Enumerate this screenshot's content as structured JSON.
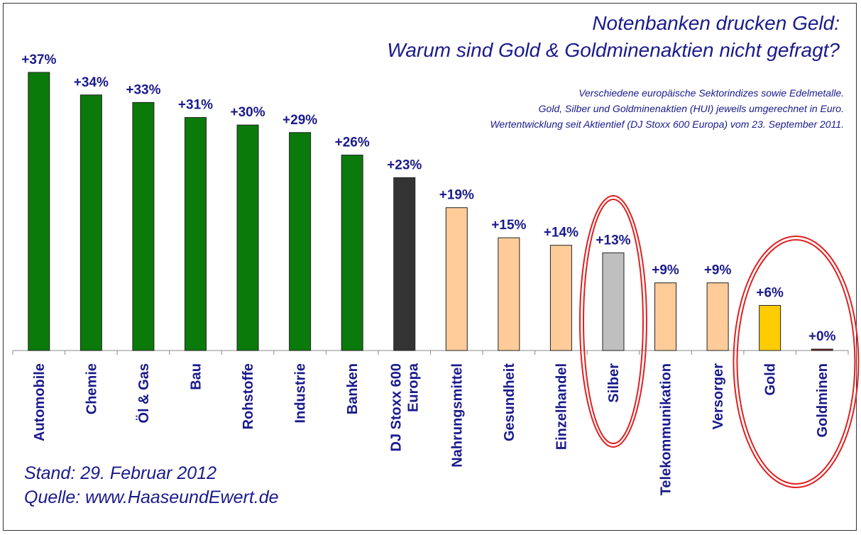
{
  "chart_data": {
    "type": "bar",
    "title_line1": "Notenbanken drucken Geld:",
    "title_line2": "Warum sind Gold & Goldminenaktien nicht gefragt?",
    "subtitle_lines": [
      "Verschiedene europäische Sektorindizes sowie Edelmetalle.",
      "Gold, Silber und Goldminenaktien (HUI) jeweils umgerechnet in Euro.",
      "Wertentwicklung seit Aktientief (DJ Stoxx 600 Europa) vom 23. September 2011."
    ],
    "categories": [
      [
        "Automobile"
      ],
      [
        "Chemie"
      ],
      [
        "Öl & Gas"
      ],
      [
        "Bau"
      ],
      [
        "Rohstoffe"
      ],
      [
        "Industrie"
      ],
      [
        "Banken"
      ],
      [
        "DJ Stoxx 600",
        "Europa"
      ],
      [
        "Nahrungsmittel"
      ],
      [
        "Gesundheit"
      ],
      [
        "Einzelhandel"
      ],
      [
        "Silber"
      ],
      [
        "Telekommunikation"
      ],
      [
        "Versorger"
      ],
      [
        "Gold"
      ],
      [
        "Goldminen"
      ]
    ],
    "values": [
      37,
      34,
      33,
      31,
      30,
      29,
      26,
      23,
      19,
      15,
      14,
      13,
      9,
      9,
      6,
      0
    ],
    "value_labels": [
      "+37%",
      "+34%",
      "+33%",
      "+31%",
      "+30%",
      "+29%",
      "+26%",
      "+23%",
      "+19%",
      "+15%",
      "+14%",
      "+13%",
      "+9%",
      "+9%",
      "+6%",
      "+0%"
    ],
    "bar_colors": [
      "#0a7a0a",
      "#0a7a0a",
      "#0a7a0a",
      "#0a7a0a",
      "#0a7a0a",
      "#0a7a0a",
      "#0a7a0a",
      "#333333",
      "#ffcc99",
      "#ffcc99",
      "#ffcc99",
      "#bfbfbf",
      "#ffcc99",
      "#ffcc99",
      "#ffcc00",
      "#8b1a1a"
    ],
    "highlighted": [
      "Silber",
      "Gold",
      "Goldminen"
    ],
    "highlight_color": "#e02020",
    "ylim": [
      0,
      37
    ],
    "grid": false,
    "legend": "none"
  },
  "footer": {
    "stand": "Stand: 29. Februar 2012",
    "quelle": "Quelle: www.HaaseundEwert.de"
  }
}
